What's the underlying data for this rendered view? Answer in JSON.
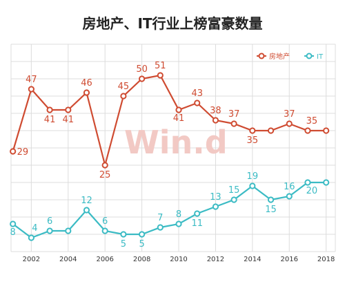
{
  "title": "房地产、IT行业上榜富豪数量",
  "watermark": "Win.d",
  "chart_data": {
    "type": "line",
    "title": "房地产、IT行业上榜富豪数量",
    "x": [
      2001,
      2002,
      2003,
      2004,
      2005,
      2006,
      2007,
      2008,
      2009,
      2010,
      2011,
      2012,
      2013,
      2014,
      2015,
      2016,
      2017,
      2018
    ],
    "x_tick_labels": [
      "2002",
      "2004",
      "2006",
      "2008",
      "2010",
      "2012",
      "2014",
      "2016",
      "2018"
    ],
    "series": [
      {
        "name": "房地产",
        "color": "#cf4b31",
        "values": [
          29,
          47,
          41,
          41,
          46,
          25,
          45,
          50,
          51,
          41,
          43,
          38,
          37,
          35,
          35,
          37,
          35,
          35
        ]
      },
      {
        "name": "IT",
        "color": "#3bbbc4",
        "values": [
          8,
          4,
          6,
          6,
          12,
          6,
          5,
          5,
          7,
          8,
          11,
          13,
          15,
          19,
          15,
          16,
          20,
          20
        ]
      }
    ],
    "value_labels": {
      "房地产": [
        "29",
        "47",
        "41",
        "41",
        "46",
        "25",
        "45",
        "50",
        "51",
        "41",
        "43",
        "38",
        "37",
        "35",
        "",
        "37",
        "35",
        ""
      ],
      "IT": [
        "8",
        "4",
        "6",
        "",
        "12",
        "6",
        "5",
        "5",
        "7",
        "8",
        "11",
        "13",
        "15",
        "19",
        "15",
        "16",
        "20",
        ""
      ]
    },
    "ylim": [
      0,
      60
    ],
    "grid": true,
    "legend": "top-right",
    "xlabel": "",
    "ylabel": ""
  }
}
